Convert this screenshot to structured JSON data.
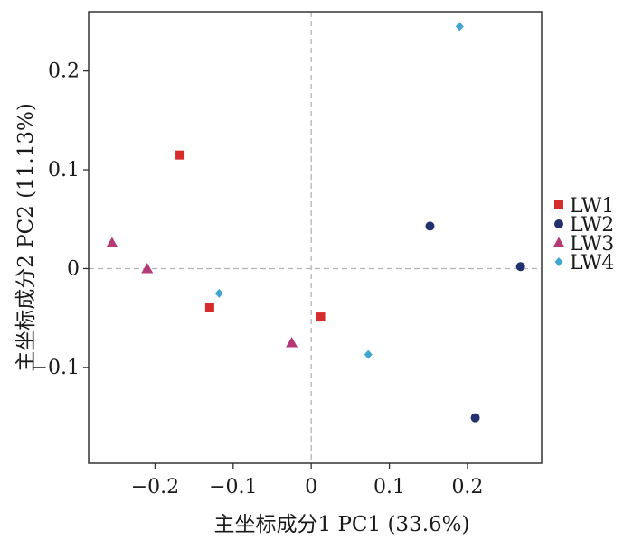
{
  "chart_data": {
    "type": "scatter",
    "xlabel": "主坐标成分1 PC1 (33.6%)",
    "ylabel": "主坐标成分2 PC2 (11.13%)",
    "xlim": [
      -0.285,
      0.295
    ],
    "ylim": [
      -0.197,
      0.26
    ],
    "x_ticks": [
      -0.2,
      -0.1,
      0,
      0.1,
      0.2
    ],
    "x_tick_labels": [
      "−0.2",
      "−0.1",
      "0",
      "0.1",
      "0.2"
    ],
    "y_ticks": [
      -0.1,
      0,
      0.1,
      0.2
    ],
    "y_tick_labels": [
      "−0.1",
      "0",
      "0.1",
      "0.2"
    ],
    "grid": false,
    "reference_lines": "dashed at x=0 and y=0",
    "legend_position": "right",
    "series": [
      {
        "name": "LW1",
        "marker": "square",
        "color": "#d62c2c",
        "points": [
          [
            -0.168,
            0.115
          ],
          [
            -0.13,
            -0.039
          ],
          [
            0.012,
            -0.049
          ]
        ]
      },
      {
        "name": "LW2",
        "marker": "circle",
        "color": "#22306e",
        "points": [
          [
            0.152,
            0.043
          ],
          [
            0.268,
            0.002
          ],
          [
            0.21,
            -0.151
          ]
        ]
      },
      {
        "name": "LW3",
        "marker": "triangle",
        "color": "#b33a76",
        "points": [
          [
            -0.255,
            0.026
          ],
          [
            -0.21,
            0.0
          ],
          [
            -0.025,
            -0.075
          ]
        ]
      },
      {
        "name": "LW4",
        "marker": "diamond",
        "color": "#3fa6d2",
        "points": [
          [
            0.19,
            0.245
          ],
          [
            -0.118,
            -0.025
          ],
          [
            0.073,
            -0.087
          ]
        ]
      }
    ]
  }
}
